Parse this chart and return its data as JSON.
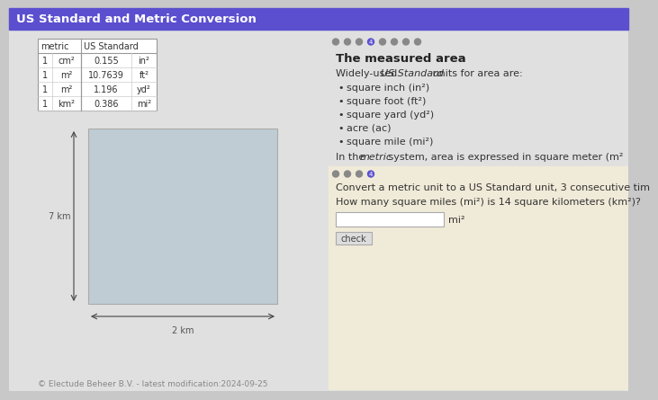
{
  "title": "US Standard and Metric Conversion",
  "title_bg": "#5b4fcf",
  "title_color": "#ffffff",
  "main_bg": "#c8c8c8",
  "left_panel_bg": "#e0e0e0",
  "right_panel_bg": "#e0e0e0",
  "right_yellow_bg": "#f0ead8",
  "table_header": [
    "metric",
    "US Standard"
  ],
  "table_rows": [
    [
      "1",
      "cm²",
      "0.155",
      "in²"
    ],
    [
      "1",
      "m²",
      "10.7639",
      "ft²"
    ],
    [
      "1",
      "m²",
      "1.196",
      "yd²"
    ],
    [
      "1",
      "km²",
      "0.386",
      "mi²"
    ]
  ],
  "square_color": "#c0ccd4",
  "square_border": "#aaaaaa",
  "arrow_color": "#444444",
  "dim_label_left": "7 km",
  "dim_label_bottom": "2 km",
  "dot_colors_n": 8,
  "dot_active_idx": 3,
  "section_title": "The measured area",
  "bullet_items": [
    "square inch (in²)",
    "square foot (ft²)",
    "square yard (yd²)",
    "acre (ac)",
    "square mile (mi²)"
  ],
  "metric_line_rest": " system, area is expressed in square meter (m²",
  "dot2_n": 4,
  "dot2_active_idx": 3,
  "convert_text": "Convert a metric unit to a US Standard unit, 3 consecutive tim",
  "question": "How many square miles (mi²) is 14 square kilometers (km²)?",
  "input_label": "mi²",
  "check_btn": "check",
  "footer": "© Electude Beheer B.V. - latest modification:2024-09-25",
  "footer_color": "#888888",
  "dot_inactive_color": "#888888",
  "dot_active_color": "#5b4fcf",
  "title_fontsize": 9.5,
  "body_fontsize": 8.0,
  "section_title_fontsize": 9.5,
  "table_fontsize": 7.0,
  "footer_fontsize": 6.5
}
